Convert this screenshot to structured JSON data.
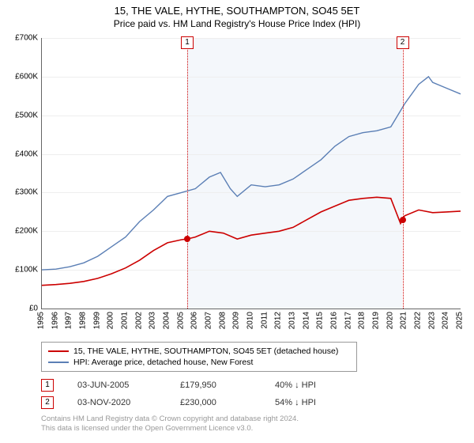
{
  "title": "15, THE VALE, HYTHE, SOUTHAMPTON, SO45 5ET",
  "subtitle": "Price paid vs. HM Land Registry's House Price Index (HPI)",
  "chart": {
    "type": "line",
    "background_color": "#ffffff",
    "shaded_region_color": "#f4f7fb",
    "grid_color": "#eeeeee",
    "axis_color": "#666666",
    "ylim": [
      0,
      700000
    ],
    "ytick_step": 100000,
    "ytick_labels": [
      "£0",
      "£100K",
      "£200K",
      "£300K",
      "£400K",
      "£500K",
      "£600K",
      "£700K"
    ],
    "xlim": [
      1995,
      2025
    ],
    "xtick_step": 1,
    "xtick_labels": [
      "1995",
      "1996",
      "1997",
      "1998",
      "1999",
      "2000",
      "2001",
      "2002",
      "2003",
      "2004",
      "2005",
      "2006",
      "2007",
      "2008",
      "2009",
      "2010",
      "2011",
      "2012",
      "2013",
      "2014",
      "2015",
      "2016",
      "2017",
      "2018",
      "2019",
      "2020",
      "2021",
      "2022",
      "2023",
      "2024",
      "2025"
    ],
    "shaded_region_xrange": [
      2005.42,
      2020.84
    ],
    "series": [
      {
        "name": "price_paid",
        "color": "#cc0000",
        "line_width": 1.6,
        "points": [
          [
            1995.0,
            60000
          ],
          [
            1996.0,
            62000
          ],
          [
            1997.0,
            65000
          ],
          [
            1998.0,
            70000
          ],
          [
            1999.0,
            78000
          ],
          [
            2000.0,
            90000
          ],
          [
            2001.0,
            105000
          ],
          [
            2002.0,
            125000
          ],
          [
            2003.0,
            150000
          ],
          [
            2004.0,
            170000
          ],
          [
            2005.0,
            178000
          ],
          [
            2005.42,
            179950
          ],
          [
            2006.0,
            185000
          ],
          [
            2007.0,
            200000
          ],
          [
            2008.0,
            195000
          ],
          [
            2009.0,
            180000
          ],
          [
            2010.0,
            190000
          ],
          [
            2011.0,
            195000
          ],
          [
            2012.0,
            200000
          ],
          [
            2013.0,
            210000
          ],
          [
            2014.0,
            230000
          ],
          [
            2015.0,
            250000
          ],
          [
            2016.0,
            265000
          ],
          [
            2017.0,
            280000
          ],
          [
            2018.0,
            285000
          ],
          [
            2019.0,
            288000
          ],
          [
            2020.0,
            285000
          ],
          [
            2020.7,
            220000
          ],
          [
            2020.84,
            230000
          ],
          [
            2021.0,
            240000
          ],
          [
            2022.0,
            255000
          ],
          [
            2023.0,
            248000
          ],
          [
            2024.0,
            250000
          ],
          [
            2025.0,
            252000
          ]
        ]
      },
      {
        "name": "hpi",
        "color": "#5b7fb5",
        "line_width": 1.4,
        "points": [
          [
            1995.0,
            100000
          ],
          [
            1996.0,
            102000
          ],
          [
            1997.0,
            108000
          ],
          [
            1998.0,
            118000
          ],
          [
            1999.0,
            135000
          ],
          [
            2000.0,
            160000
          ],
          [
            2001.0,
            185000
          ],
          [
            2002.0,
            225000
          ],
          [
            2003.0,
            255000
          ],
          [
            2004.0,
            290000
          ],
          [
            2005.0,
            300000
          ],
          [
            2006.0,
            310000
          ],
          [
            2007.0,
            340000
          ],
          [
            2007.8,
            352000
          ],
          [
            2008.5,
            310000
          ],
          [
            2009.0,
            290000
          ],
          [
            2010.0,
            320000
          ],
          [
            2011.0,
            315000
          ],
          [
            2012.0,
            320000
          ],
          [
            2013.0,
            335000
          ],
          [
            2014.0,
            360000
          ],
          [
            2015.0,
            385000
          ],
          [
            2016.0,
            420000
          ],
          [
            2017.0,
            445000
          ],
          [
            2018.0,
            455000
          ],
          [
            2019.0,
            460000
          ],
          [
            2020.0,
            470000
          ],
          [
            2021.0,
            530000
          ],
          [
            2022.0,
            580000
          ],
          [
            2022.7,
            600000
          ],
          [
            2023.0,
            585000
          ],
          [
            2024.0,
            570000
          ],
          [
            2025.0,
            555000
          ]
        ]
      }
    ],
    "sale_markers": [
      {
        "n": "1",
        "x": 2005.42,
        "y": 179950
      },
      {
        "n": "2",
        "x": 2020.84,
        "y": 230000
      }
    ],
    "marker_border_color": "#cc0000",
    "marker_dot_color": "#cc0000"
  },
  "legend": {
    "items": [
      {
        "color": "#cc0000",
        "label": "15, THE VALE, HYTHE, SOUTHAMPTON, SO45 5ET (detached house)"
      },
      {
        "color": "#5b7fb5",
        "label": "HPI: Average price, detached house, New Forest"
      }
    ]
  },
  "annotations": [
    {
      "n": "1",
      "date": "03-JUN-2005",
      "price": "£179,950",
      "delta": "40% ↓ HPI"
    },
    {
      "n": "2",
      "date": "03-NOV-2020",
      "price": "£230,000",
      "delta": "54% ↓ HPI"
    }
  ],
  "footer_line1": "Contains HM Land Registry data © Crown copyright and database right 2024.",
  "footer_line2": "This data is licensed under the Open Government Licence v3.0."
}
